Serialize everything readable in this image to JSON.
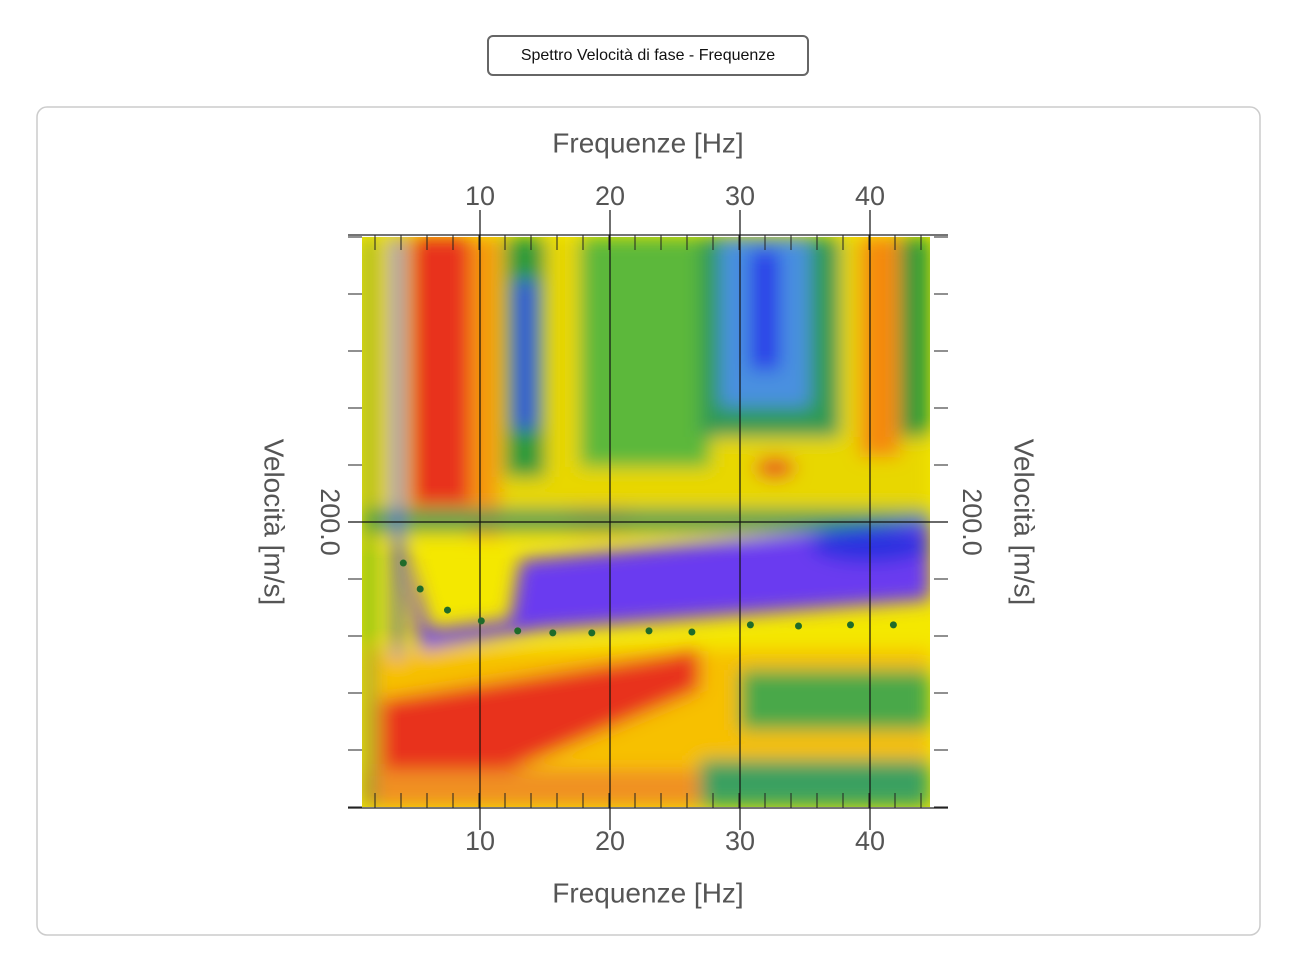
{
  "button": {
    "label": "Spettro Velocità di fase - Frequenze"
  },
  "chart_data": {
    "type": "scatter",
    "title_top": "Frequenze [Hz]",
    "x_label": "Frequenze [Hz]",
    "y_label": "Velocità [m/s]",
    "y2_label": "Velocità [m/s]",
    "xlim": [
      1,
      45
    ],
    "xticks": [
      10,
      20,
      30,
      40
    ],
    "ylim": [
      100,
      300
    ],
    "yticks": [
      {
        "value": 200,
        "label": "200.0"
      }
    ],
    "grid": true,
    "color": "#1f6b2a",
    "series": [
      {
        "x": [
          4.1,
          5.4,
          7.5,
          10.1,
          12.9,
          15.6,
          18.6,
          23.0,
          26.3,
          30.8,
          34.5,
          38.5,
          41.8
        ],
        "values": [
          185.6,
          176.5,
          169.1,
          165.3,
          161.8,
          161.1,
          161.1,
          161.8,
          161.4,
          163.9,
          163.5,
          163.9,
          163.9
        ]
      }
    ]
  }
}
